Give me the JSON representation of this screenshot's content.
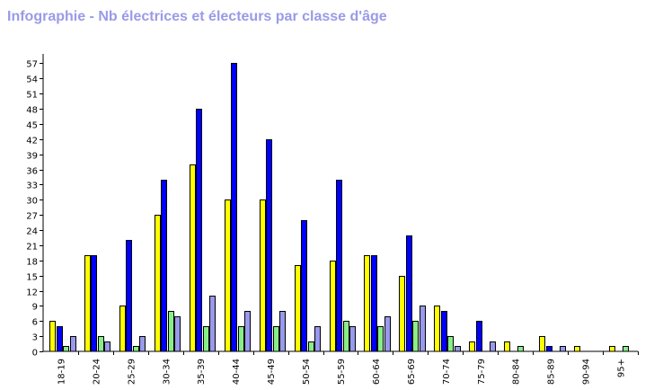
{
  "chart_data": {
    "type": "bar",
    "title": "Infographie - Nb électrices et électeurs par classe d'âge",
    "categories": [
      "18-19",
      "20-24",
      "25-29",
      "30-34",
      "35-39",
      "40-44",
      "45-49",
      "50-54",
      "55-59",
      "60-64",
      "65-69",
      "70-74",
      "75-79",
      "80-84",
      "85-89",
      "90-94",
      "95+"
    ],
    "series": [
      {
        "color": "#ffff00",
        "values": [
          6,
          19,
          9,
          27,
          37,
          30,
          30,
          17,
          18,
          19,
          15,
          9,
          2,
          2,
          3,
          1,
          1
        ]
      },
      {
        "color": "#0000ff",
        "values": [
          5,
          19,
          22,
          34,
          48,
          57,
          42,
          26,
          34,
          19,
          23,
          8,
          6,
          0,
          1,
          0,
          0
        ]
      },
      {
        "color": "#88ee88",
        "values": [
          1,
          3,
          1,
          8,
          5,
          5,
          5,
          2,
          6,
          5,
          6,
          3,
          0,
          1,
          0,
          0,
          1
        ]
      },
      {
        "color": "#9999ee",
        "values": [
          3,
          2,
          3,
          7,
          11,
          8,
          8,
          5,
          5,
          7,
          9,
          1,
          2,
          0,
          1,
          0,
          0
        ]
      }
    ],
    "yticks": [
      0,
      3,
      6,
      9,
      12,
      15,
      18,
      21,
      24,
      27,
      30,
      33,
      36,
      39,
      42,
      45,
      48,
      51,
      54,
      57
    ],
    "ylim": [
      0,
      58.5
    ],
    "grid": false,
    "legend": "none"
  }
}
